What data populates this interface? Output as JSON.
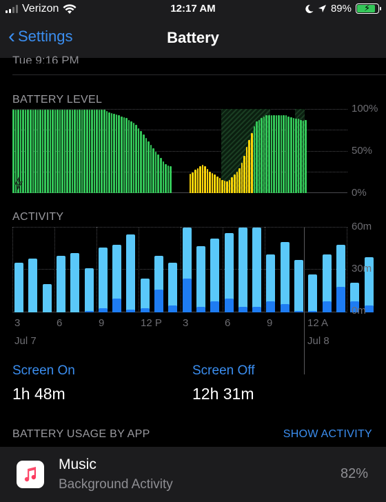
{
  "status_bar": {
    "carrier": "Verizon",
    "time": "12:17 AM",
    "battery_percent": "89%",
    "battery_level": 0.89,
    "icons": [
      "signal-icon",
      "wifi-icon",
      "moon-icon",
      "location-icon",
      "battery-charging-icon"
    ]
  },
  "nav": {
    "back_label": "Settings",
    "title": "Battery"
  },
  "scrolled_text": "Tue 9:16 PM",
  "battery_level_chart": {
    "label": "BATTERY LEVEL",
    "y_ticks": [
      "100%",
      "50%",
      "0%"
    ],
    "colors": {
      "normal": "#34c759",
      "low_power": "#ffd60a"
    },
    "levels": [
      100,
      100,
      100,
      100,
      100,
      100,
      100,
      100,
      100,
      100,
      100,
      100,
      100,
      100,
      100,
      100,
      100,
      100,
      100,
      100,
      100,
      100,
      100,
      100,
      100,
      100,
      100,
      100,
      100,
      100,
      100,
      100,
      100,
      100,
      100,
      100,
      100,
      100,
      98,
      97,
      96,
      95,
      94,
      93,
      92,
      91,
      90,
      88,
      86,
      84,
      82,
      78,
      74,
      70,
      66,
      62,
      58,
      54,
      50,
      46,
      42,
      38,
      35,
      33,
      32,
      31,
      30,
      30,
      29,
      28,
      27,
      26,
      23,
      25,
      28,
      30,
      32,
      34,
      32,
      29,
      26,
      24,
      22,
      20,
      18,
      16,
      15,
      14,
      16,
      19,
      22,
      26,
      30,
      36,
      45,
      55,
      64,
      72,
      80,
      86,
      88,
      90,
      92,
      93,
      93,
      93,
      93,
      93,
      93,
      93,
      93,
      93,
      92,
      91,
      90,
      89,
      89,
      88,
      87,
      88
    ],
    "low_power_ranges": [
      [
        72,
        90
      ],
      [
        91,
        97
      ]
    ],
    "charging_ranges": [
      [
        85,
        104
      ],
      [
        115,
        118
      ]
    ],
    "gap_ranges": [
      [
        65,
        71
      ]
    ]
  },
  "activity_chart": {
    "label": "ACTIVITY",
    "y_ticks": [
      "60m",
      "30m",
      "0m"
    ],
    "y_max": 60,
    "screen_on_minutes": [
      35,
      38,
      20,
      40,
      42,
      31,
      46,
      48,
      55,
      24,
      40,
      35,
      60,
      47,
      52,
      56,
      60,
      60,
      41,
      50,
      37,
      27,
      41,
      48,
      21,
      39
    ],
    "screen_off_minutes": [
      0,
      0,
      0,
      0,
      0,
      1,
      3,
      10,
      2,
      3,
      16,
      5,
      24,
      4,
      8,
      10,
      4,
      4,
      8,
      6,
      1,
      1,
      8,
      18,
      8,
      5
    ],
    "x_ticks": [
      "3",
      "6",
      "9",
      "12 P",
      "3",
      "6",
      "9",
      "12 A"
    ],
    "dates": [
      "Jul 7",
      "Jul 8"
    ]
  },
  "stats": {
    "screen_on_label": "Screen On",
    "screen_on_value": "1h 48m",
    "screen_off_label": "Screen Off",
    "screen_off_value": "12h 31m"
  },
  "usage": {
    "header": "BATTERY USAGE BY APP",
    "show_activity": "SHOW ACTIVITY",
    "apps": [
      {
        "name": "Music",
        "subtitle": "Background Activity",
        "percent": "82%",
        "icon": "music-note-icon"
      }
    ]
  }
}
